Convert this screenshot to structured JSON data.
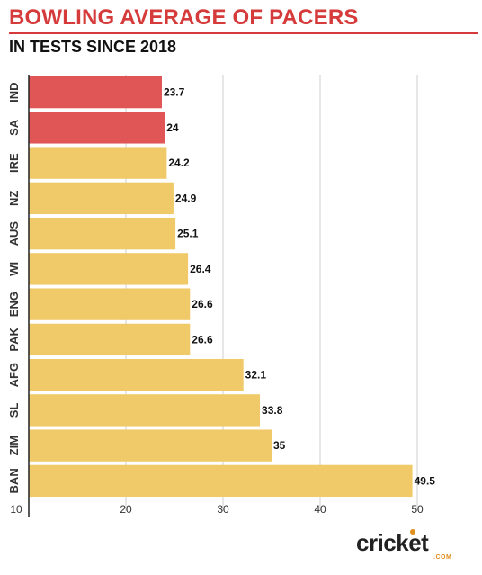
{
  "header": {
    "title": "BOWLING AVERAGE OF PACERS",
    "subtitle": "IN TESTS SINCE 2018"
  },
  "brand": {
    "name": "cricket",
    "suffix": ".COM"
  },
  "colors": {
    "highlight": "#e05555",
    "default": "#f0ca68",
    "title": "#d63b3b",
    "grid": "#cfcfcf"
  },
  "chart_data": {
    "type": "bar",
    "orientation": "horizontal",
    "categories": [
      "IND",
      "SA",
      "IRE",
      "NZ",
      "AUS",
      "WI",
      "ENG",
      "PAK",
      "AFG",
      "SL",
      "ZIM",
      "BAN"
    ],
    "values": [
      23.7,
      24,
      24.2,
      24.9,
      25.1,
      26.4,
      26.6,
      26.6,
      32.1,
      33.8,
      35,
      49.5
    ],
    "highlighted": [
      "IND",
      "SA"
    ],
    "title": "BOWLING AVERAGE OF PACERS",
    "subtitle": "IN TESTS SINCE 2018",
    "xlim": [
      10,
      55
    ],
    "xticks": [
      10,
      20,
      30,
      40,
      50
    ],
    "grid": true,
    "data_labels": true
  }
}
